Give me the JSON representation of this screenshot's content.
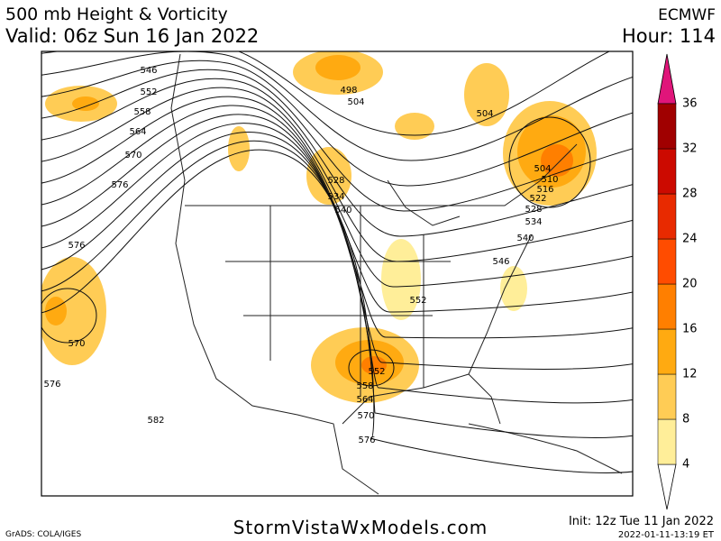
{
  "header": {
    "title": "500 mb Height & Vorticity",
    "valid": "Valid: 06z Sun 16 Jan 2022",
    "model": "ECMWF",
    "hour": "Hour: 114"
  },
  "contour_labels": [
    "546",
    "552",
    "558",
    "564",
    "570",
    "576",
    "576",
    "570",
    "576",
    "582",
    "498",
    "504",
    "504",
    "528",
    "534",
    "540",
    "504",
    "510",
    "516",
    "522",
    "528",
    "534",
    "540",
    "546",
    "552",
    "552",
    "558",
    "564",
    "570",
    "576"
  ],
  "colorbar": {
    "labels": [
      4,
      8,
      12,
      16,
      20,
      24,
      28,
      32,
      36
    ],
    "colors": [
      "#ffee99",
      "#ffcc55",
      "#ffaa11",
      "#ff7f00",
      "#ff4c00",
      "#e82a00",
      "#cc0a00",
      "#a00000"
    ],
    "top_color": "#e0157a"
  },
  "footer": {
    "credit": "GrADS: COLA/IGES",
    "site": "StormVistaWxModels.com",
    "init": "Init: 12z Tue 11 Jan 2022",
    "stamp": "2022-01-11-13:19 ET"
  }
}
